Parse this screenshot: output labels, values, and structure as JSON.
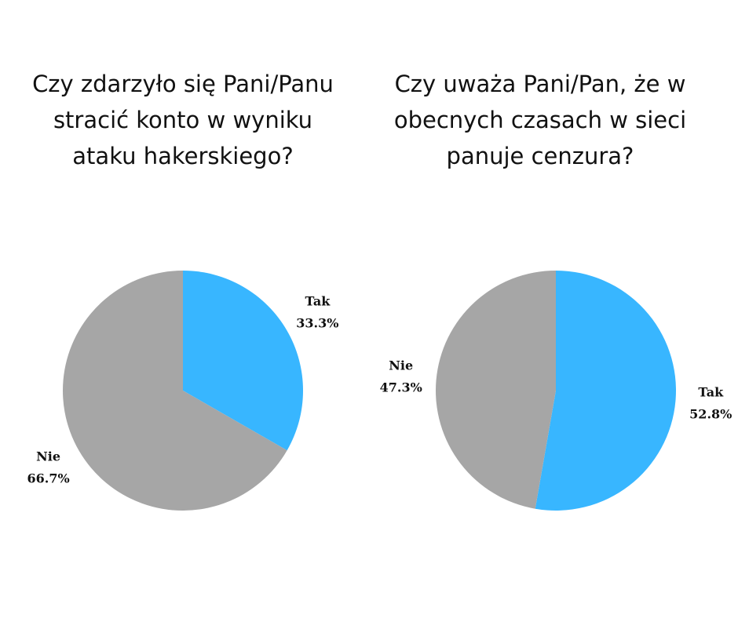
{
  "chart_data": [
    {
      "type": "pie",
      "title": "Czy zdarzyło się Pani/Panu stracić konto w wyniku ataku hakerskiego?",
      "categories": [
        "Tak",
        "Nie"
      ],
      "values": [
        33.3,
        66.7
      ],
      "value_labels": [
        "33.3%",
        "66.7%"
      ],
      "colors": [
        "#38b6ff",
        "#a6a6a6"
      ]
    },
    {
      "type": "pie",
      "title": "Czy uważa Pani/Pan, że w obecnych czasach w sieci panuje cenzura?",
      "categories": [
        "Tak",
        "Nie"
      ],
      "values": [
        52.8,
        47.3
      ],
      "value_labels": [
        "52.8%",
        "47.3%"
      ],
      "colors": [
        "#38b6ff",
        "#a6a6a6"
      ]
    }
  ]
}
